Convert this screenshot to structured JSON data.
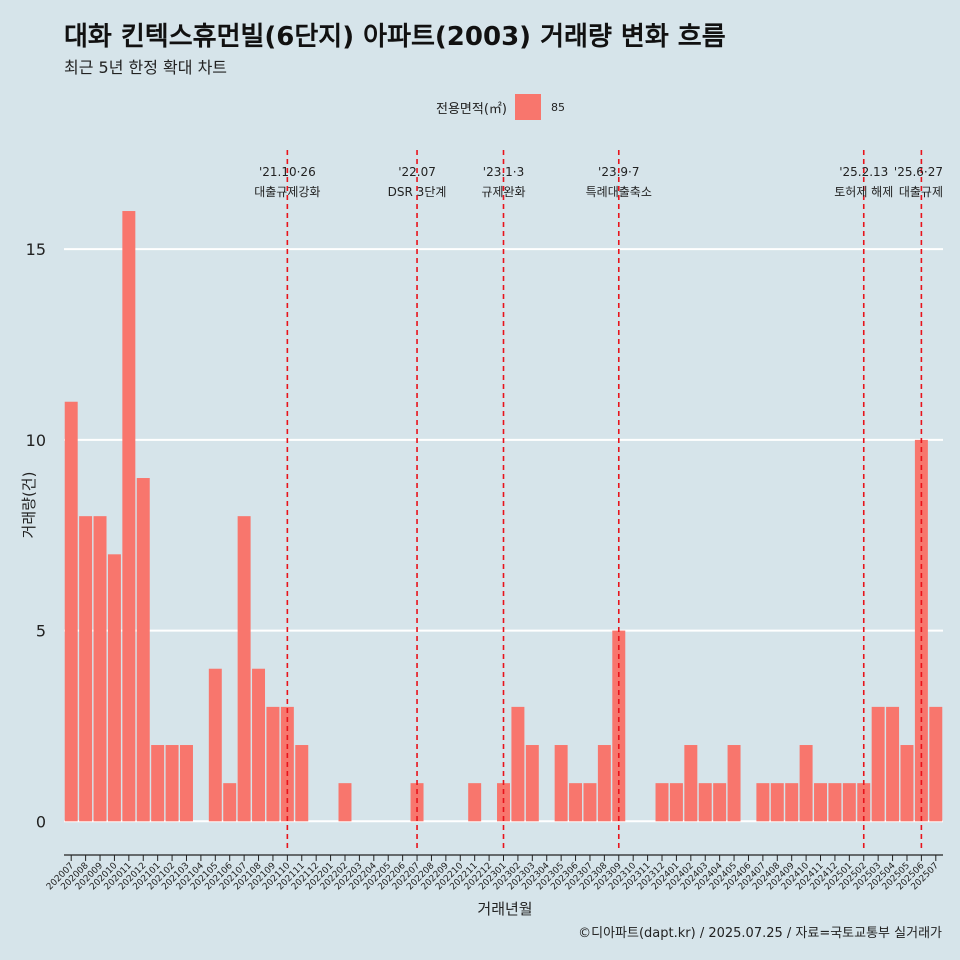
{
  "header": {
    "title": "대화 킨텍스휴먼빌(6단지) 아파트(2003) 거래량 변화 흐름",
    "subtitle": "최근 5년 한정 확대 차트"
  },
  "legend": {
    "title": "전용면적(㎡)",
    "items": [
      {
        "label": "85",
        "color": "#f8766d"
      }
    ]
  },
  "caption": "©디아파트(dapt.kr) / 2025.07.25 / 자료=국토교통부 실거래가",
  "chart_data": {
    "type": "bar",
    "xlabel": "거래년월",
    "ylabel": "거래량(건)",
    "ylim": [
      -0.7,
      17.6
    ],
    "yticks": [
      0,
      5,
      10,
      15
    ],
    "bar_color": "#f8766d",
    "categories": [
      "202007",
      "202008",
      "202009",
      "202010",
      "202011",
      "202012",
      "202101",
      "202102",
      "202103",
      "202104",
      "202105",
      "202106",
      "202107",
      "202108",
      "202109",
      "202110",
      "202111",
      "202112",
      "202201",
      "202202",
      "202203",
      "202204",
      "202205",
      "202206",
      "202207",
      "202208",
      "202209",
      "202210",
      "202211",
      "202212",
      "202301",
      "202302",
      "202303",
      "202304",
      "202305",
      "202306",
      "202307",
      "202308",
      "202309",
      "202310",
      "202311",
      "202312",
      "202401",
      "202402",
      "202403",
      "202404",
      "202405",
      "202406",
      "202407",
      "202408",
      "202409",
      "202410",
      "202411",
      "202412",
      "202501",
      "202502",
      "202503",
      "202504",
      "202505",
      "202506",
      "202507"
    ],
    "values": [
      11,
      8,
      8,
      7,
      16,
      9,
      2,
      2,
      2,
      0,
      4,
      1,
      8,
      4,
      3,
      3,
      2,
      0,
      0,
      1,
      0,
      0,
      0,
      0,
      1,
      0,
      0,
      0,
      1,
      0,
      1,
      3,
      2,
      0,
      2,
      1,
      1,
      2,
      5,
      0,
      0,
      1,
      1,
      2,
      1,
      1,
      2,
      0,
      1,
      1,
      1,
      2,
      1,
      1,
      1,
      1,
      3,
      3,
      2,
      10,
      3
    ],
    "events": [
      {
        "category": "202110",
        "date": "'21.10·26",
        "label": "대출규제강화"
      },
      {
        "category": "202207",
        "date": "'22.07",
        "label": "DSR 3단계"
      },
      {
        "category": "202301",
        "date": "'23.1·3",
        "label": "규제완화"
      },
      {
        "category": "202309",
        "date": "'23.9·7",
        "label": "특례대출축소"
      },
      {
        "category": "202502",
        "date": "'25.2.13",
        "label": "토허제 해제"
      },
      {
        "category": "202506",
        "date": "'25.6·27",
        "label": "대출규제"
      }
    ],
    "event_line_color": "#e8131b",
    "grid": true,
    "legend_position": "top"
  }
}
